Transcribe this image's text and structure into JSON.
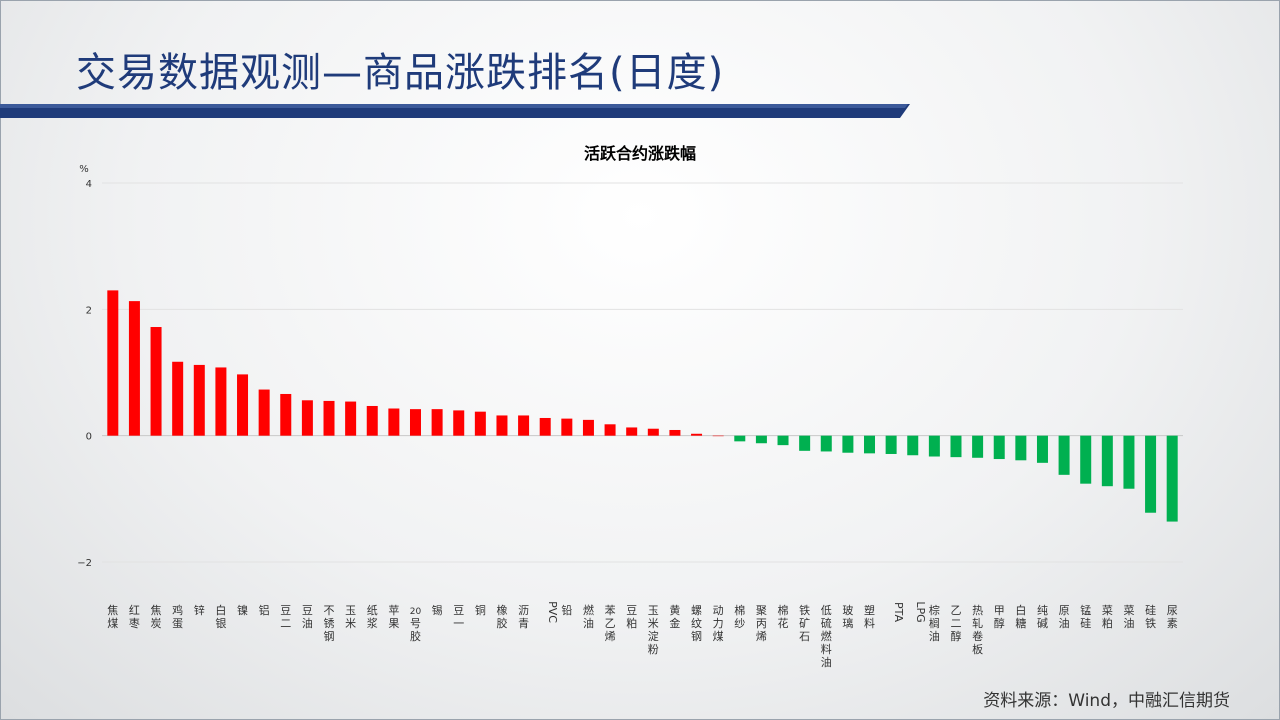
{
  "page": {
    "title": "交易数据观测—商品涨跌排名(日度)",
    "source": "资料来源：Wind，中融汇信期货",
    "accent_color": "#1f3b7a"
  },
  "chart_data": {
    "type": "bar",
    "title": "活跃合约涨跌幅",
    "ylabel": "%",
    "xlabel": "",
    "ylim": [
      -2,
      4
    ],
    "yticks": [
      -2,
      0,
      2,
      4
    ],
    "grid": true,
    "legend": "none",
    "positive_color": "#ff0000",
    "negative_color": "#00b050",
    "categories": [
      "焦煤",
      "红枣",
      "焦炭",
      "鸡蛋",
      "锌",
      "白银",
      "镍",
      "铝",
      "豆二",
      "豆油",
      "不锈钢",
      "玉米",
      "纸浆",
      "苹果",
      "20号胶",
      "锡",
      "豆一",
      "铜",
      "橡胶",
      "沥青",
      "PVC",
      "铅",
      "燃油",
      "苯乙烯",
      "豆粕",
      "玉米淀粉",
      "黄金",
      "螺纹钢",
      "动力煤",
      "棉纱",
      "聚丙烯",
      "棉花",
      "铁矿石",
      "低硫燃料油",
      "玻璃",
      "塑料",
      "PTA",
      "LPG",
      "棕榈油",
      "乙二醇",
      "热轧卷板",
      "甲醇",
      "白糖",
      "纯碱",
      "原油",
      "锰硅",
      "菜粕",
      "菜油",
      "硅铁",
      "尿素"
    ],
    "values": [
      2.3,
      2.13,
      1.72,
      1.17,
      1.12,
      1.08,
      0.97,
      0.73,
      0.66,
      0.56,
      0.55,
      0.54,
      0.47,
      0.43,
      0.42,
      0.42,
      0.4,
      0.38,
      0.32,
      0.32,
      0.28,
      0.27,
      0.25,
      0.18,
      0.13,
      0.11,
      0.09,
      0.03,
      0.0,
      -0.09,
      -0.12,
      -0.15,
      -0.24,
      -0.25,
      -0.27,
      -0.28,
      -0.29,
      -0.31,
      -0.33,
      -0.34,
      -0.35,
      -0.37,
      -0.39,
      -0.43,
      -0.62,
      -0.76,
      -0.8,
      -0.84,
      -1.22,
      -1.36
    ]
  }
}
